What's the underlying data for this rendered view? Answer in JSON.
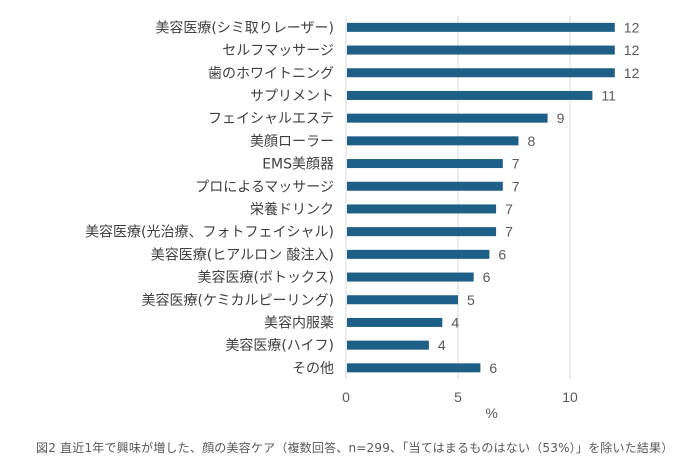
{
  "chart_data": {
    "type": "bar",
    "orientation": "horizontal",
    "title": "",
    "categories": [
      "美容医療(シミ取りレーザー)",
      "セルフマッサージ",
      "歯のホワイトニング",
      "サプリメント",
      "フェイシャルエステ",
      "美顔ローラー",
      "EMS美顔器",
      "プロによるマッサージ",
      "栄養ドリンク",
      "美容医療(光治療、フォトフェイシャル)",
      "美容医療(ヒアルロン 酸注入)",
      "美容医療(ボトックス)",
      "美容医療(ケミカルピーリング)",
      "美容内服薬",
      "美容医療(ハイフ)",
      "その他"
    ],
    "values": [
      12.0,
      12.0,
      12.0,
      11.0,
      9.0,
      7.7,
      7.0,
      7.0,
      6.7,
      6.7,
      6.4,
      5.7,
      5.0,
      4.3,
      3.7,
      6.0
    ],
    "data_labels": [
      "12",
      "12",
      "12",
      "11",
      "9",
      "8",
      "7",
      "7",
      "7",
      "7",
      "6",
      "6",
      "5",
      "4",
      "4",
      "6"
    ],
    "xlabel": "%",
    "ylabel": "",
    "xlim": [
      0,
      13
    ],
    "xticks": [
      0,
      5,
      10
    ],
    "xtick_labels": [
      "0",
      "5",
      "10"
    ],
    "grid": "vertical",
    "legend": "none",
    "bar_color": "#1d5f86",
    "grid_color": "#d9d9d9"
  },
  "figure": {
    "caption": "図2 直近1年で興味が増した、顔の美容ケア（複数回答、n=299、「当てはまるものはない（53%）」を除いた結果）"
  }
}
